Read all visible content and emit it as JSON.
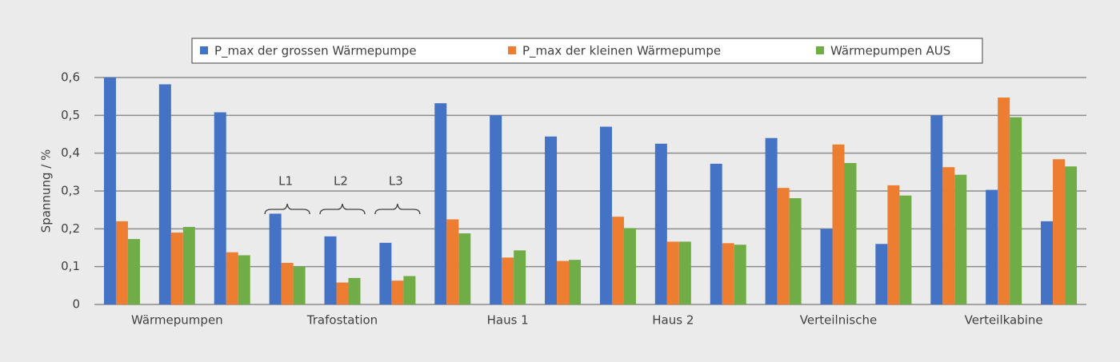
{
  "chart_data": {
    "type": "bar",
    "y_label": "Spannung / %",
    "categories": [
      null,
      "Wärmepumpen",
      null,
      null,
      "Trafostation",
      null,
      null,
      "Haus 1",
      null,
      null,
      "Haus 2",
      null,
      null,
      "Verteilnische",
      null,
      null,
      "Verteilkabine",
      null
    ],
    "series": [
      {
        "name": "P_max der grossen Wärmepumpe",
        "color": "#4472c4",
        "values": [
          0.6,
          0.582,
          0.508,
          0.24,
          0.18,
          0.163,
          0.532,
          0.5,
          0.444,
          0.47,
          0.425,
          0.372,
          0.44,
          0.2,
          0.16,
          0.5,
          0.303,
          0.22
        ]
      },
      {
        "name": "P_max der kleinen Wärmepumpe",
        "color": "#ed7d31",
        "values": [
          0.22,
          0.19,
          0.138,
          0.11,
          0.058,
          0.063,
          0.225,
          0.124,
          0.115,
          0.232,
          0.166,
          0.162,
          0.308,
          0.423,
          0.315,
          0.363,
          0.547,
          0.384
        ]
      },
      {
        "name": "Wärmepumpen AUS",
        "color": "#70ad47",
        "values": [
          0.173,
          0.205,
          0.13,
          0.1,
          0.07,
          0.075,
          0.188,
          0.143,
          0.118,
          0.202,
          0.166,
          0.158,
          0.281,
          0.374,
          0.288,
          0.343,
          0.495,
          0.365
        ]
      }
    ],
    "annotations": [
      "L1",
      "L2",
      "L3"
    ],
    "ylim": [
      0,
      0.6
    ],
    "yticks": [
      0,
      {
        "value": 0.1,
        "label": "0,1"
      },
      {
        "value": 0.2,
        "label": "0,2"
      },
      {
        "value": 0.3,
        "label": "0,3"
      },
      {
        "value": 0.4,
        "label": "0,4"
      },
      {
        "value": 0.5,
        "label": "0,5"
      },
      {
        "value": 0.6,
        "label": "0,6"
      }
    ],
    "grid": true,
    "legend": "top"
  }
}
